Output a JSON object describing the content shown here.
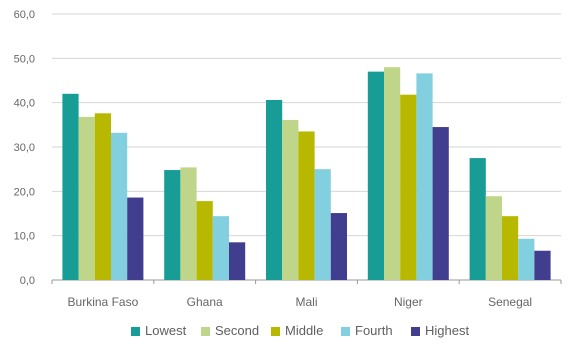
{
  "chart_data": {
    "type": "bar",
    "categories": [
      "Burkina Faso",
      "Ghana",
      "Mali",
      "Niger",
      "Senegal"
    ],
    "series": [
      {
        "name": "Lowest",
        "color": "#179c96",
        "values": [
          42.0,
          24.8,
          40.6,
          47.0,
          27.5
        ]
      },
      {
        "name": "Second",
        "color": "#bfd68a",
        "values": [
          36.8,
          25.4,
          36.1,
          48.0,
          18.9
        ]
      },
      {
        "name": "Middle",
        "color": "#b9b800",
        "values": [
          37.6,
          17.8,
          33.5,
          41.8,
          14.4
        ]
      },
      {
        "name": "Fourth",
        "color": "#82cfe0",
        "values": [
          33.2,
          14.4,
          25.0,
          46.6,
          9.3
        ]
      },
      {
        "name": "Highest",
        "color": "#413e8f",
        "values": [
          18.6,
          8.5,
          15.1,
          34.5,
          6.6
        ]
      }
    ],
    "y_ticks": [
      "0,0",
      "10,0",
      "20,0",
      "30,0",
      "40,0",
      "50,0",
      "60,0"
    ],
    "ylim": [
      0,
      60
    ],
    "grid": true,
    "legend": "bottom",
    "title": "",
    "xlabel": "",
    "ylabel": ""
  }
}
